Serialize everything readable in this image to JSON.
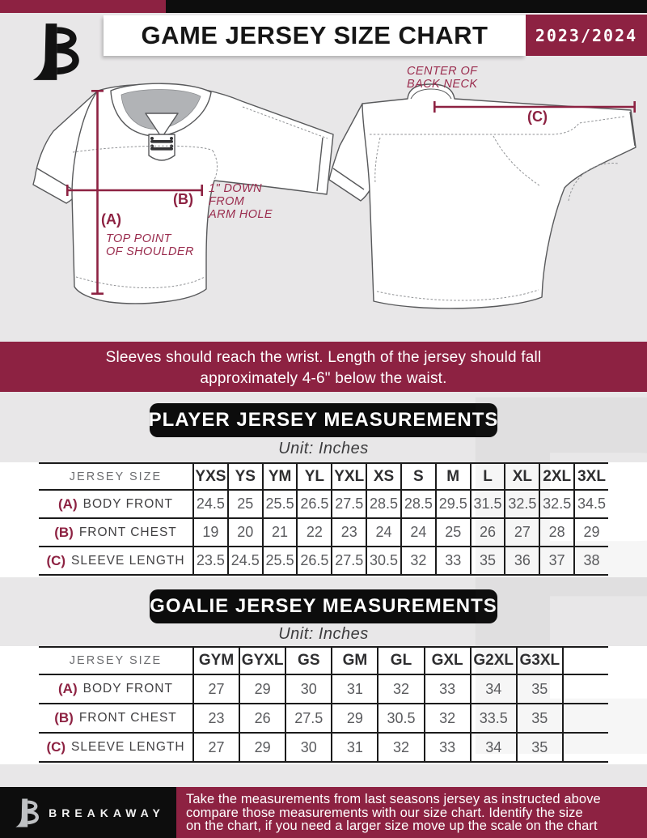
{
  "header": {
    "title": "GAME JERSEY SIZE CHART",
    "season": "2023/2024"
  },
  "diagram": {
    "a_tag": "(A)",
    "a_note_line1": "TOP POINT",
    "a_note_line2": "OF SHOULDER",
    "b_tag": "(B)",
    "b_note_line1": "1\" DOWN",
    "b_note_line2": "FROM",
    "b_note_line3": "ARM HOLE",
    "c_tag": "(C)",
    "back_neck_line1": "CENTER OF",
    "back_neck_line2": "BACK NECK"
  },
  "banner": {
    "line1": "Sleeves should reach the wrist. Length of the jersey should fall",
    "line2": "approximately 4-6\" below the waist."
  },
  "player_section": {
    "title": "PLAYER JERSEY MEASUREMENTS",
    "unit": "Unit: Inches"
  },
  "player_table": {
    "corner_label": "JERSEY SIZE",
    "columns": [
      "YXS",
      "YS",
      "YM",
      "YL",
      "YXL",
      "XS",
      "S",
      "M",
      "L",
      "XL",
      "2XL",
      "3XL"
    ],
    "rows": [
      {
        "tag": "(A)",
        "label": "BODY FRONT",
        "values": [
          "24.5",
          "25",
          "25.5",
          "26.5",
          "27.5",
          "28.5",
          "28.5",
          "29.5",
          "31.5",
          "32.5",
          "32.5",
          "34.5"
        ]
      },
      {
        "tag": "(B)",
        "label": "FRONT CHEST",
        "values": [
          "19",
          "20",
          "21",
          "22",
          "23",
          "24",
          "24",
          "25",
          "26",
          "27",
          "28",
          "29"
        ]
      },
      {
        "tag": "(C)",
        "label": "SLEEVE LENGTH",
        "values": [
          "23.5",
          "24.5",
          "25.5",
          "26.5",
          "27.5",
          "30.5",
          "32",
          "33",
          "35",
          "36",
          "37",
          "38"
        ]
      }
    ]
  },
  "goalie_section": {
    "title": "GOALIE JERSEY MEASUREMENTS",
    "unit": "Unit: Inches"
  },
  "goalie_table": {
    "corner_label": "JERSEY SIZE",
    "columns": [
      "GYM",
      "GYXL",
      "GS",
      "GM",
      "GL",
      "GXL",
      "G2XL",
      "G3XL",
      ""
    ],
    "rows": [
      {
        "tag": "(A)",
        "label": "BODY FRONT",
        "values": [
          "27",
          "29",
          "30",
          "31",
          "32",
          "33",
          "34",
          "35",
          ""
        ]
      },
      {
        "tag": "(B)",
        "label": "FRONT CHEST",
        "values": [
          "23",
          "26",
          "27.5",
          "29",
          "30.5",
          "32",
          "33.5",
          "35",
          ""
        ]
      },
      {
        "tag": "(C)",
        "label": "SLEEVE LENGTH",
        "values": [
          "27",
          "29",
          "30",
          "31",
          "32",
          "33",
          "34",
          "35",
          ""
        ]
      }
    ]
  },
  "footer": {
    "brand": "BREAKAWAY",
    "note_line1": "Take the measurements from last seasons jersey as instructed above",
    "note_line2": "compare those measurements  with our size chart. Identify the size",
    "note_line3": "on the chart, if you need a larger size move up the scale on the chart"
  },
  "watermark_letter": "B",
  "colors": {
    "maroon": "#8D2242",
    "black": "#0d0d0d",
    "background": "#E8E7E8",
    "table_line": "#1b1b1b",
    "value_gray": "#5a5b5e"
  }
}
